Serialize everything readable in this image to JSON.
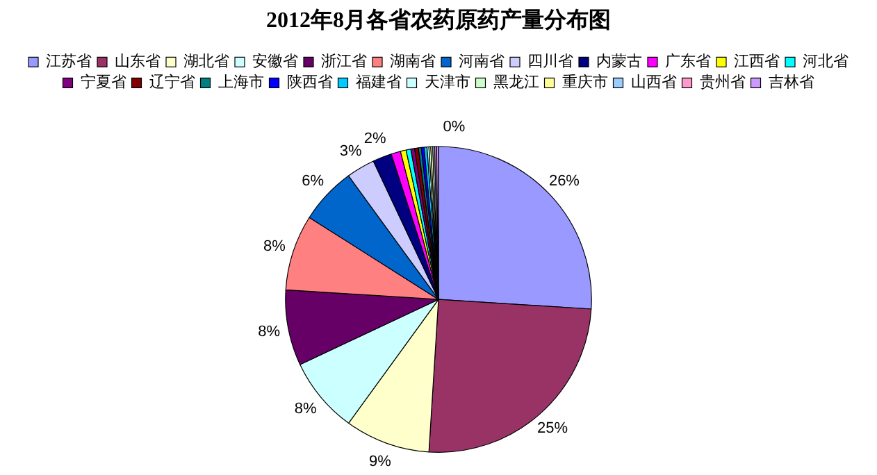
{
  "chart_data": {
    "type": "pie",
    "title": "2012年8月各省农药原药产量分布图",
    "categories": [
      "江苏省",
      "山东省",
      "湖北省",
      "安徽省",
      "浙江省",
      "湖南省",
      "河南省",
      "四川省",
      "内蒙古",
      "广东省",
      "江西省",
      "河北省",
      "宁夏省",
      "辽宁省",
      "上海市",
      "陕西省",
      "福建省",
      "天津市",
      "黑龙江",
      "重庆市",
      "山西省",
      "贵州省",
      "吉林省"
    ],
    "values": [
      26,
      25,
      9,
      8,
      8,
      8,
      6,
      3,
      2,
      1,
      0.6,
      0.5,
      0.4,
      0.4,
      0.3,
      0.3,
      0.3,
      0.2,
      0.2,
      0.2,
      0.2,
      0.2,
      0.2
    ],
    "value_labels": [
      "26%",
      "25%",
      "9%",
      "8%",
      "8%",
      "8%",
      "6%",
      "3%",
      "2%",
      null,
      null,
      null,
      null,
      null,
      null,
      null,
      null,
      null,
      null,
      null,
      null,
      null,
      "0%"
    ],
    "colors": [
      "#9999ff",
      "#993366",
      "#ffffcc",
      "#ccffff",
      "#660066",
      "#ff8080",
      "#0066cc",
      "#ccccff",
      "#000080",
      "#ff00ff",
      "#ffff00",
      "#00ffff",
      "#800080",
      "#800000",
      "#008080",
      "#0000ff",
      "#00ccff",
      "#ccffff",
      "#ccffcc",
      "#ffff99",
      "#99ccff",
      "#ff99cc",
      "#cc99ff"
    ],
    "legend": "top"
  }
}
